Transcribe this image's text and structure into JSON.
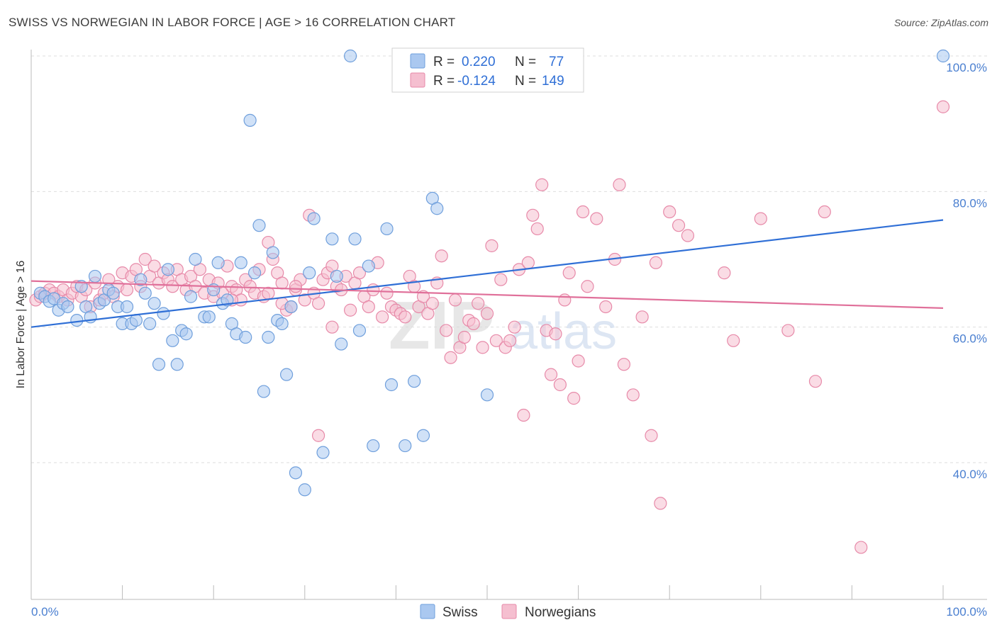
{
  "title": "SWISS VS NORWEGIAN IN LABOR FORCE | AGE > 16 CORRELATION CHART",
  "source": "Source: ZipAtlas.com",
  "colors": {
    "swiss_fill": "#aac8f0",
    "swiss_stroke": "#6f9fdc",
    "swiss_line": "#2f6fd6",
    "norwegian_fill": "#f5bfd0",
    "norwegian_stroke": "#e78aa9",
    "norwegian_line": "#e0709a",
    "tick_text": "#4a7fd0",
    "grid": "#dedede"
  },
  "legend": {
    "r_label": "R =",
    "n_label": "N =",
    "swiss_r": "0.220",
    "swiss_n": "77",
    "norwegian_r": "-0.124",
    "norwegian_n": "149"
  },
  "chart_data": {
    "type": "scatter",
    "title": "SWISS VS NORWEGIAN IN LABOR FORCE | AGE > 16 CORRELATION CHART",
    "xlabel": "",
    "ylabel": "In Labor Force | Age > 16",
    "xlim": [
      0,
      100
    ],
    "ylim": [
      20,
      102
    ],
    "x_tick_labels": [
      "0.0%",
      "100.0%"
    ],
    "y_ticks": [
      40,
      60,
      80,
      100
    ],
    "y_tick_labels": [
      "40.0%",
      "60.0%",
      "80.0%",
      "100.0%"
    ],
    "grid": true,
    "legend_position": "top-center",
    "watermark": "ZIPatlas",
    "series": [
      {
        "name": "Swiss",
        "r": 0.22,
        "n": 77,
        "trend": {
          "x": [
            0,
            100
          ],
          "y": [
            60.0,
            75.8
          ]
        },
        "points": [
          [
            1,
            65
          ],
          [
            1.5,
            64.5
          ],
          [
            2,
            63.8
          ],
          [
            2.5,
            64.2
          ],
          [
            3,
            62.5
          ],
          [
            3.5,
            63.5
          ],
          [
            4,
            63
          ],
          [
            5,
            61
          ],
          [
            5.5,
            66
          ],
          [
            6,
            63
          ],
          [
            6.5,
            61.5
          ],
          [
            7,
            67.5
          ],
          [
            7.5,
            63.5
          ],
          [
            8,
            64
          ],
          [
            8.5,
            65.5
          ],
          [
            9,
            65
          ],
          [
            9.5,
            63
          ],
          [
            10,
            60.5
          ],
          [
            10.5,
            63
          ],
          [
            11,
            60.5
          ],
          [
            11.5,
            61
          ],
          [
            12,
            67
          ],
          [
            12.5,
            65
          ],
          [
            13,
            60.5
          ],
          [
            13.5,
            63.5
          ],
          [
            14,
            54.5
          ],
          [
            14.5,
            62
          ],
          [
            15,
            68.5
          ],
          [
            15.5,
            58
          ],
          [
            16,
            54.5
          ],
          [
            16.5,
            59.5
          ],
          [
            17,
            59
          ],
          [
            17.5,
            64.5
          ],
          [
            18,
            70
          ],
          [
            19,
            61.5
          ],
          [
            19.5,
            61.5
          ],
          [
            20,
            65.5
          ],
          [
            20.5,
            69.5
          ],
          [
            21,
            63.5
          ],
          [
            21.5,
            64
          ],
          [
            22,
            60.5
          ],
          [
            22.5,
            59
          ],
          [
            23,
            69.5
          ],
          [
            23.5,
            58.5
          ],
          [
            24,
            90.5
          ],
          [
            24.5,
            68
          ],
          [
            25,
            75
          ],
          [
            25.5,
            50.5
          ],
          [
            26,
            58.5
          ],
          [
            26.5,
            71
          ],
          [
            27,
            61
          ],
          [
            27.5,
            60.5
          ],
          [
            28,
            53
          ],
          [
            28.5,
            63
          ],
          [
            29,
            38.5
          ],
          [
            30,
            36
          ],
          [
            30.5,
            68
          ],
          [
            31,
            76
          ],
          [
            32,
            41.5
          ],
          [
            33,
            73
          ],
          [
            33.5,
            67.5
          ],
          [
            34,
            57.5
          ],
          [
            35,
            100
          ],
          [
            35.5,
            73
          ],
          [
            36,
            59.5
          ],
          [
            37,
            69
          ],
          [
            37.5,
            42.5
          ],
          [
            39,
            74.5
          ],
          [
            39.5,
            51.5
          ],
          [
            41,
            42.5
          ],
          [
            42,
            52
          ],
          [
            43,
            44
          ],
          [
            44,
            79
          ],
          [
            44.5,
            77.5
          ],
          [
            50,
            50
          ],
          [
            52,
            100
          ],
          [
            100,
            100
          ]
        ]
      },
      {
        "name": "Norwegians",
        "r": -0.124,
        "n": 149,
        "trend": {
          "x": [
            0,
            100
          ],
          "y": [
            66.8,
            62.8
          ]
        },
        "points": [
          [
            0.5,
            64
          ],
          [
            1,
            64.5
          ],
          [
            1.5,
            65
          ],
          [
            2,
            65.5
          ],
          [
            2.5,
            65
          ],
          [
            3,
            64.5
          ],
          [
            3.5,
            65.5
          ],
          [
            4,
            64
          ],
          [
            4.5,
            65
          ],
          [
            5,
            66
          ],
          [
            5.5,
            64.5
          ],
          [
            6,
            65.5
          ],
          [
            6.5,
            63
          ],
          [
            7,
            66.5
          ],
          [
            7.5,
            64
          ],
          [
            8,
            65
          ],
          [
            8.5,
            67
          ],
          [
            9,
            64.5
          ],
          [
            9.5,
            66
          ],
          [
            10,
            68
          ],
          [
            10.5,
            65.5
          ],
          [
            11,
            67.5
          ],
          [
            11.5,
            68.5
          ],
          [
            12,
            66
          ],
          [
            12.5,
            70
          ],
          [
            13,
            67.5
          ],
          [
            13.5,
            69
          ],
          [
            14,
            66.5
          ],
          [
            14.5,
            68
          ],
          [
            15,
            67
          ],
          [
            15.5,
            66
          ],
          [
            16,
            68.5
          ],
          [
            16.5,
            67
          ],
          [
            17,
            65.5
          ],
          [
            17.5,
            67.5
          ],
          [
            18,
            66
          ],
          [
            18.5,
            68.5
          ],
          [
            19,
            65
          ],
          [
            19.5,
            67
          ],
          [
            20,
            64.5
          ],
          [
            20.5,
            66.5
          ],
          [
            21,
            65
          ],
          [
            21.5,
            69
          ],
          [
            22,
            66
          ],
          [
            22.5,
            65.5
          ],
          [
            23,
            64
          ],
          [
            23.5,
            67
          ],
          [
            24,
            66
          ],
          [
            24.5,
            65
          ],
          [
            25,
            68.5
          ],
          [
            25.5,
            64.5
          ],
          [
            26,
            72.5
          ],
          [
            26.5,
            70
          ],
          [
            27,
            68
          ],
          [
            27.5,
            66.5
          ],
          [
            28,
            62.5
          ],
          [
            28.5,
            63
          ],
          [
            29,
            65.5
          ],
          [
            29.5,
            67
          ],
          [
            30,
            64
          ],
          [
            30.5,
            76.5
          ],
          [
            31,
            65
          ],
          [
            31.5,
            63.5
          ],
          [
            32,
            67
          ],
          [
            32.5,
            68
          ],
          [
            33,
            69
          ],
          [
            33.5,
            66
          ],
          [
            34,
            65.5
          ],
          [
            34.5,
            67.5
          ],
          [
            35,
            62.5
          ],
          [
            35.5,
            66.5
          ],
          [
            36,
            68
          ],
          [
            36.5,
            64.5
          ],
          [
            37,
            63
          ],
          [
            37.5,
            65.5
          ],
          [
            38,
            69.5
          ],
          [
            38.5,
            61.5
          ],
          [
            39,
            65
          ],
          [
            39.5,
            63
          ],
          [
            40,
            62.5
          ],
          [
            40.5,
            62
          ],
          [
            41,
            61.5
          ],
          [
            41.5,
            67.5
          ],
          [
            42,
            66
          ],
          [
            42.5,
            63
          ],
          [
            43,
            64.5
          ],
          [
            43.5,
            62
          ],
          [
            44,
            63.5
          ],
          [
            44.5,
            66.5
          ],
          [
            45,
            70.5
          ],
          [
            45.5,
            59.5
          ],
          [
            46,
            55.5
          ],
          [
            46.5,
            64
          ],
          [
            47,
            57
          ],
          [
            47.5,
            58.5
          ],
          [
            48,
            61
          ],
          [
            48.5,
            60.5
          ],
          [
            49,
            63.5
          ],
          [
            49.5,
            57
          ],
          [
            50,
            62
          ],
          [
            50.5,
            72
          ],
          [
            51,
            58
          ],
          [
            51.5,
            67
          ],
          [
            52,
            57
          ],
          [
            52.5,
            58
          ],
          [
            53,
            60
          ],
          [
            53.5,
            68.5
          ],
          [
            54,
            47
          ],
          [
            54.5,
            69.5
          ],
          [
            55,
            76.5
          ],
          [
            55.5,
            74.5
          ],
          [
            56,
            81
          ],
          [
            56.5,
            59.5
          ],
          [
            57,
            53
          ],
          [
            57.5,
            59
          ],
          [
            58,
            51.5
          ],
          [
            58.5,
            64
          ],
          [
            59,
            68
          ],
          [
            59.5,
            49.5
          ],
          [
            60,
            55
          ],
          [
            60.5,
            77
          ],
          [
            61,
            66
          ],
          [
            62,
            76
          ],
          [
            63,
            63
          ],
          [
            64,
            70
          ],
          [
            64.5,
            81
          ],
          [
            65,
            54.5
          ],
          [
            66,
            50
          ],
          [
            67,
            61.5
          ],
          [
            68,
            44
          ],
          [
            68.5,
            69.5
          ],
          [
            69,
            34
          ],
          [
            70,
            77
          ],
          [
            71,
            75
          ],
          [
            72,
            73.5
          ],
          [
            76,
            68
          ],
          [
            77,
            58
          ],
          [
            80,
            76
          ],
          [
            83,
            59.5
          ],
          [
            86,
            52
          ],
          [
            87,
            77
          ],
          [
            91,
            27.5
          ],
          [
            100,
            92.5
          ],
          [
            31.5,
            44
          ],
          [
            29,
            66
          ],
          [
            27.5,
            63.5
          ],
          [
            26,
            65
          ],
          [
            22,
            64
          ],
          [
            33,
            60
          ]
        ]
      }
    ]
  },
  "bottom_legend": {
    "swiss": "Swiss",
    "norwegians": "Norwegians"
  }
}
